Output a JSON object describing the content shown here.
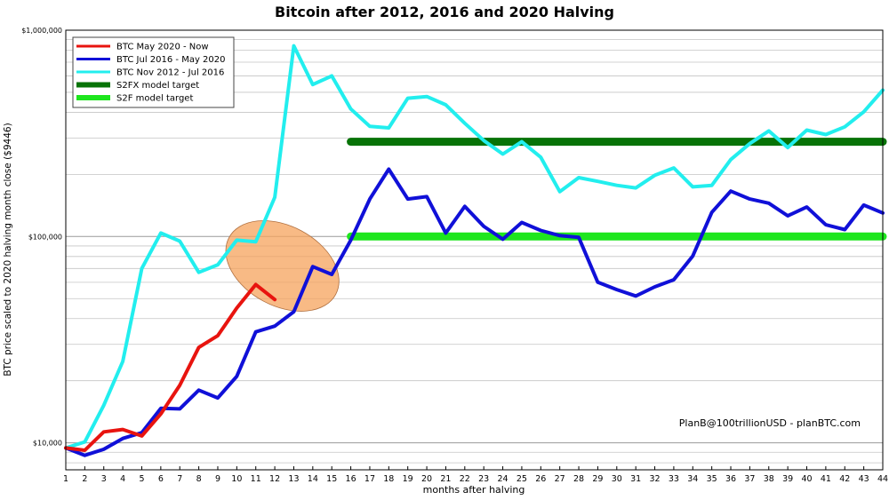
{
  "chart_data": {
    "type": "line",
    "title": "Bitcoin after 2012, 2016 and 2020 Halving",
    "xlabel": "months after halving",
    "ylabel": "BTC price scaled to 2020 halving month close ($9446)",
    "yscale": "log",
    "ylim": [
      7400,
      1000000
    ],
    "xlim": [
      1,
      44
    ],
    "grid": true,
    "legend_position": "top-left",
    "x_ticks": [
      1,
      2,
      3,
      4,
      5,
      6,
      7,
      8,
      9,
      10,
      11,
      12,
      13,
      14,
      15,
      16,
      17,
      18,
      19,
      20,
      21,
      22,
      23,
      24,
      25,
      26,
      27,
      28,
      29,
      30,
      31,
      32,
      33,
      34,
      35,
      36,
      37,
      38,
      39,
      40,
      41,
      42,
      43,
      44
    ],
    "y_ticks": [
      {
        "value": 10000,
        "label": "$10,000"
      },
      {
        "value": 100000,
        "label": "$100,000"
      },
      {
        "value": 1000000,
        "label": "$1,000,000"
      }
    ],
    "series": [
      {
        "name": "BTC May 2020 - Now",
        "color": "#e8140f",
        "x": [
          1,
          2,
          3,
          4,
          5,
          6,
          7,
          8,
          9,
          10,
          11,
          12
        ],
        "values": [
          9446,
          9200,
          11300,
          11600,
          10800,
          13800,
          19000,
          29000,
          33100,
          45000,
          58500,
          49500
        ]
      },
      {
        "name": "BTC Jul 2016 - May 2020",
        "color": "#1010d8",
        "x": [
          1,
          2,
          3,
          4,
          5,
          6,
          7,
          8,
          9,
          10,
          11,
          12,
          13,
          14,
          15,
          16,
          17,
          18,
          19,
          20,
          21,
          22,
          23,
          24,
          25,
          26,
          27,
          28,
          29,
          30,
          31,
          32,
          33,
          34,
          35,
          36,
          37,
          38,
          39,
          40,
          41,
          42,
          43,
          44
        ],
        "values": [
          9446,
          8700,
          9300,
          10500,
          11200,
          14700,
          14600,
          18000,
          16500,
          21000,
          34500,
          36800,
          43200,
          71500,
          65500,
          96000,
          152000,
          212000,
          152000,
          156000,
          104000,
          140000,
          112000,
          97000,
          117000,
          107000,
          101000,
          99000,
          60000,
          55300,
          51500,
          57000,
          61700,
          80500,
          131000,
          166000,
          152000,
          145000,
          126000,
          139000,
          114000,
          108000,
          142000,
          130000
        ]
      },
      {
        "name": "BTC Nov 2012 - Jul 2016",
        "color": "#22eeee",
        "x": [
          1,
          2,
          3,
          4,
          5,
          6,
          7,
          8,
          9,
          10,
          11,
          12,
          13,
          14,
          15,
          16,
          17,
          18,
          19,
          20,
          21,
          22,
          23,
          24,
          25,
          26,
          27,
          28,
          29,
          30,
          31,
          32,
          33,
          34,
          35,
          36,
          37,
          38,
          39,
          40,
          41,
          42,
          43,
          44
        ],
        "values": [
          9446,
          10100,
          15200,
          24800,
          70000,
          104000,
          95000,
          67000,
          73000,
          96000,
          94300,
          155000,
          840000,
          545000,
          600000,
          415000,
          342000,
          336000,
          468000,
          477000,
          435000,
          354000,
          292000,
          251000,
          288000,
          242000,
          165000,
          193000,
          185000,
          177000,
          172000,
          198000,
          215000,
          174000,
          177000,
          236000,
          282000,
          325000,
          270000,
          328000,
          312000,
          340000,
          402000,
          512000
        ]
      },
      {
        "name": "S2FX model target",
        "color": "#077307",
        "x": [
          16,
          44
        ],
        "values": [
          288000,
          288000
        ]
      },
      {
        "name": "S2F model target",
        "color": "#1ee61e",
        "x": [
          16,
          44
        ],
        "values": [
          100000,
          100000
        ]
      }
    ],
    "annotations": [
      {
        "text": "PlanB@100trillionUSD  -  planBTC.com",
        "position": "bottom-right"
      }
    ],
    "highlight_ellipse": {
      "center_x": 12.4,
      "center_y": 72000,
      "fill": "#f5a35c"
    }
  }
}
